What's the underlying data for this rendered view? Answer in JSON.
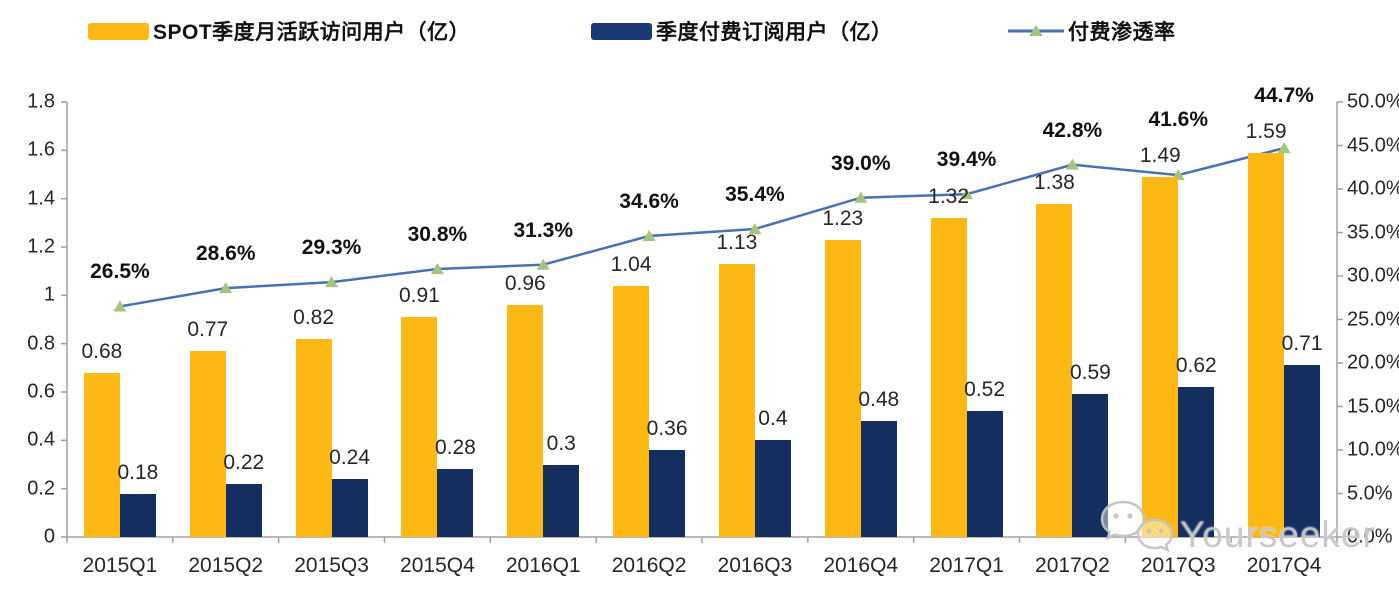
{
  "colors": {
    "mau_bar": "#FDB813",
    "paid_bar": "#152E60",
    "legend_paid_swatch": "#1B3A75",
    "line": "#4A6FB5",
    "marker": "#A4C57C",
    "axis": "#A0A0A0",
    "label_text": "#262626",
    "pct_text": "#111111",
    "watermark": "#C6C6C6"
  },
  "legend": [
    {
      "label": "SPOT季度月活跃访问用户（亿）",
      "type": "bar",
      "color": "#FDB813"
    },
    {
      "label": "季度付费订阅用户（亿）",
      "type": "bar",
      "color": "#1B3A75"
    },
    {
      "label": "付费渗透率",
      "type": "line",
      "color": "#4A6FB5",
      "marker_color": "#A4C57C"
    }
  ],
  "chart_data": {
    "type": "bar",
    "subtype": "combo-bar-line-dual-axis",
    "categories": [
      "2015Q1",
      "2015Q2",
      "2015Q3",
      "2015Q4",
      "2016Q1",
      "2016Q2",
      "2016Q3",
      "2016Q4",
      "2017Q1",
      "2017Q2",
      "2017Q3",
      "2017Q4"
    ],
    "series": [
      {
        "name": "SPOT季度月活跃访问用户（亿）",
        "type": "bar",
        "axis": "left",
        "values": [
          0.68,
          0.77,
          0.82,
          0.91,
          0.96,
          1.04,
          1.13,
          1.23,
          1.32,
          1.38,
          1.49,
          1.59
        ],
        "labels": [
          "0.68",
          "0.77",
          "0.82",
          "0.91",
          "0.96",
          "1.04",
          "1.13",
          "1.23",
          "1.32",
          "1.38",
          "1.49",
          "1.59"
        ]
      },
      {
        "name": "季度付费订阅用户（亿）",
        "type": "bar",
        "axis": "left",
        "values": [
          0.18,
          0.22,
          0.24,
          0.28,
          0.3,
          0.36,
          0.4,
          0.48,
          0.52,
          0.59,
          0.62,
          0.71
        ],
        "labels": [
          "0.18",
          "0.22",
          "0.24",
          "0.28",
          "0.3",
          "0.36",
          "0.4",
          "0.48",
          "0.52",
          "0.59",
          "0.62",
          "0.71"
        ]
      },
      {
        "name": "付费渗透率",
        "type": "line",
        "axis": "right",
        "values": [
          26.5,
          28.6,
          29.3,
          30.8,
          31.3,
          34.6,
          35.4,
          39.0,
          39.4,
          42.8,
          41.6,
          44.7
        ],
        "labels": [
          "26.5%",
          "28.6%",
          "29.3%",
          "30.8%",
          "31.3%",
          "34.6%",
          "35.4%",
          "39.0%",
          "39.4%",
          "42.8%",
          "41.6%",
          "44.7%"
        ]
      }
    ],
    "left_axis": {
      "min": 0,
      "max": 1.8,
      "step": 0.2,
      "ticks": [
        "0",
        "0.2",
        "0.4",
        "0.6",
        "0.8",
        "1",
        "1.2",
        "1.4",
        "1.6",
        "1.8"
      ]
    },
    "right_axis": {
      "min": 0,
      "max": 50,
      "step": 5,
      "ticks": [
        "0.0%",
        "5.0%",
        "10.0%",
        "15.0%",
        "20.0%",
        "25.0%",
        "30.0%",
        "35.0%",
        "40.0%",
        "45.0%",
        "50.0%"
      ]
    },
    "grid": false,
    "legend_position": "top",
    "title": "",
    "xlabel": "",
    "ylabel": ""
  },
  "watermark": {
    "text": "Yourseeker",
    "icon": "wechat-icon"
  }
}
